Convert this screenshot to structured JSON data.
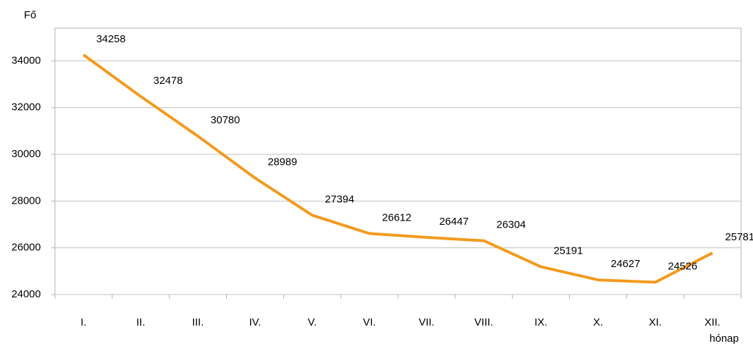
{
  "chart_data": {
    "type": "line",
    "y_label": "Fő",
    "x_label": "hónap",
    "categories": [
      "I.",
      "II.",
      "III.",
      "IV.",
      "V.",
      "VI.",
      "VII.",
      "VIII.",
      "IX.",
      "X.",
      "XI.",
      "XII."
    ],
    "values": [
      34258,
      32478,
      30780,
      28989,
      27394,
      26612,
      26447,
      26304,
      25191,
      24627,
      24526,
      25781
    ],
    "color": "#f39a1e",
    "ylim": [
      24000,
      35400
    ],
    "yticks": [
      24000,
      26000,
      28000,
      30000,
      32000,
      34000
    ],
    "grid": true
  }
}
